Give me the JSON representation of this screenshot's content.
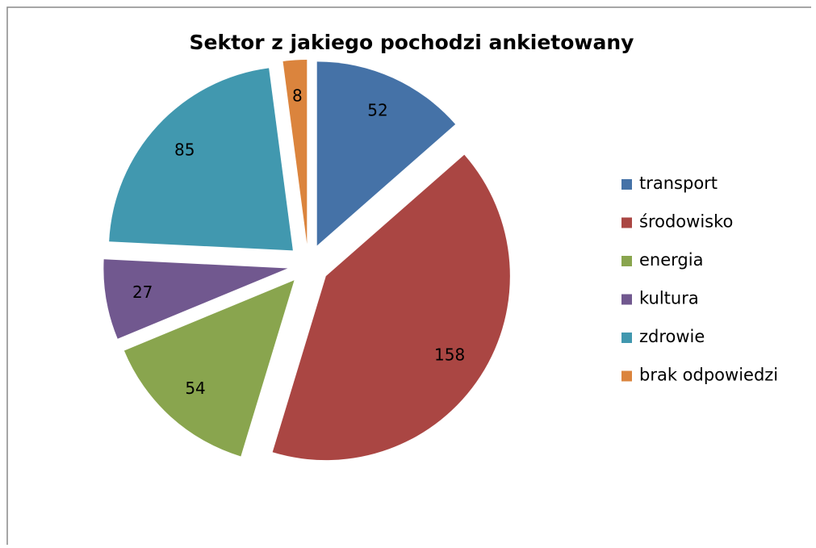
{
  "chart_data": {
    "type": "pie",
    "title": "Sektor z jakiego pochodzi  ankietowany",
    "categories": [
      "transport",
      "środowisko",
      "energia",
      "kultura",
      "zdrowie",
      "brak odpowiedzi"
    ],
    "values": [
      52,
      158,
      54,
      27,
      85,
      8
    ],
    "colors": [
      "#4572a7",
      "#aa4643",
      "#89a54e",
      "#71588f",
      "#4198af",
      "#db843d"
    ],
    "legend": "right"
  }
}
